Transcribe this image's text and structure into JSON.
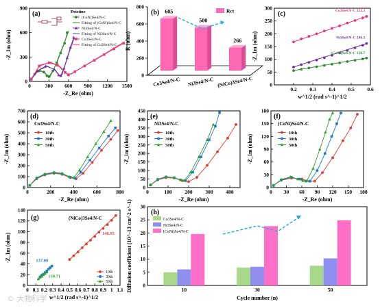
{
  "watermark": "© 大物科学",
  "chart_data": [
    {
      "panel": "(a)",
      "type": "line",
      "xlabel": "-Z_Re (ohm)",
      "ylabel": "-Z_Im (ohm)",
      "xlim": [
        0,
        1500
      ],
      "ylim": [
        0,
        900
      ],
      "xticks": [
        0,
        300,
        600,
        900,
        1200,
        1500
      ],
      "yticks": [
        0,
        300,
        600,
        900
      ],
      "legend_title": "Pristine",
      "series": [
        {
          "name": "(CoNi)Se4/N-C",
          "color": "#2e8b2e",
          "points": [
            [
              20,
              30
            ],
            [
              80,
              90
            ],
            [
              150,
              130
            ],
            [
              220,
              115
            ],
            [
              270,
              70
            ],
            [
              300,
              60
            ],
            [
              360,
              130
            ],
            [
              420,
              230
            ],
            [
              480,
              350
            ],
            [
              540,
              470
            ],
            [
              580,
              600
            ]
          ]
        },
        {
          "name": "Fitting of (CoNi)Se4/N-C",
          "color": "#2e8b2e",
          "points": [
            [
              20,
              20
            ],
            [
              100,
              110
            ],
            [
              180,
              130
            ],
            [
              240,
              105
            ],
            [
              280,
              60
            ],
            [
              310,
              50
            ],
            [
              380,
              160
            ],
            [
              460,
              320
            ],
            [
              540,
              480
            ],
            [
              600,
              620
            ]
          ]
        },
        {
          "name": "Ni3Se4/N-C",
          "color": "#7030a0",
          "points": [
            [
              20,
              25
            ],
            [
              120,
              130
            ],
            [
              250,
              190
            ],
            [
              380,
              150
            ],
            [
              450,
              80
            ],
            [
              480,
              70
            ],
            [
              530,
              160
            ],
            [
              580,
              290
            ],
            [
              630,
              420
            ],
            [
              680,
              540
            ]
          ]
        },
        {
          "name": "Fitting of Ni3Se4/N-C",
          "color": "#7030a0",
          "points": [
            [
              20,
              20
            ],
            [
              140,
              140
            ],
            [
              280,
              185
            ],
            [
              400,
              140
            ],
            [
              460,
              70
            ],
            [
              500,
              80
            ],
            [
              560,
              230
            ],
            [
              620,
              380
            ],
            [
              690,
              540
            ]
          ]
        },
        {
          "name": "Co3Se4/N-C",
          "color": "#e8367d",
          "points": [
            [
              30,
              30
            ],
            [
              150,
              190
            ],
            [
              300,
              230
            ],
            [
              430,
              200
            ],
            [
              550,
              110
            ],
            [
              600,
              80
            ],
            [
              700,
              120
            ],
            [
              850,
              190
            ],
            [
              1000,
              260
            ],
            [
              1150,
              330
            ],
            [
              1300,
              400
            ],
            [
              1450,
              470
            ]
          ]
        },
        {
          "name": "Fitting of Co3Se4/N-C",
          "color": "#e8367d",
          "points": [
            [
              20,
              20
            ],
            [
              160,
              200
            ],
            [
              320,
              235
            ],
            [
              460,
              190
            ],
            [
              570,
              95
            ],
            [
              640,
              90
            ],
            [
              800,
              170
            ],
            [
              1000,
              265
            ],
            [
              1200,
              360
            ],
            [
              1450,
              480
            ]
          ]
        }
      ],
      "inset": "equivalent circuit"
    },
    {
      "panel": "(b)",
      "type": "bar",
      "ylabel": "R (ohm)",
      "ylim": [
        0,
        800
      ],
      "yticks": [
        0,
        200,
        400,
        600,
        800
      ],
      "legend": "Rct",
      "color": "#ff69b4",
      "categories": [
        "Co3Se4/N-C",
        "Ni3Se4/N-C",
        "(NiCo)3Se4/N-C"
      ],
      "values": [
        605,
        500,
        266
      ]
    },
    {
      "panel": "(c)",
      "type": "scatter",
      "xlabel": "w^1/2 (rad s^-1)^1/2",
      "ylabel": "-Z_Im (ohm)",
      "xlim": [
        0.1,
        0.6
      ],
      "ylim": [
        0,
        300
      ],
      "xticks": [
        0.2,
        0.3,
        0.4,
        0.5,
        0.6
      ],
      "yticks": [
        0,
        50,
        100,
        150,
        200,
        250,
        300
      ],
      "series": [
        {
          "name": "Co3Se4/N-C",
          "slope_label": "253.3",
          "color": "#e8367d",
          "x": [
            0.2,
            0.24,
            0.28,
            0.32,
            0.36,
            0.4,
            0.44,
            0.48,
            0.52,
            0.56,
            0.58
          ],
          "y": [
            168,
            180,
            190,
            200,
            211,
            221,
            231,
            242,
            252,
            262,
            268
          ]
        },
        {
          "name": "Ni3Se4/N-C",
          "slope_label": "244.5",
          "color": "#7030a0",
          "x": [
            0.2,
            0.24,
            0.28,
            0.32,
            0.36,
            0.4,
            0.44,
            0.48,
            0.52,
            0.56,
            0.58
          ],
          "y": [
            70,
            79,
            88,
            97,
            106,
            116,
            125,
            135,
            145,
            155,
            162
          ]
        },
        {
          "name": "(CoNi)Se4/N-C",
          "slope_label": "120.7",
          "color": "#2e8b2e",
          "x": [
            0.2,
            0.24,
            0.28,
            0.32,
            0.36,
            0.4,
            0.44,
            0.48,
            0.52,
            0.56,
            0.58
          ],
          "y": [
            56,
            61,
            66,
            71,
            76,
            81,
            86,
            91,
            96,
            101,
            105
          ]
        }
      ]
    },
    {
      "panel": "(d)",
      "type": "line",
      "title": "Co3Se4/N-C",
      "xlabel": "-Z_Re (ohm)",
      "ylabel": "-Z_Im (ohm)",
      "xlim": [
        0,
        800
      ],
      "ylim": [
        0,
        700
      ],
      "xticks": [
        0,
        200,
        400,
        600,
        800
      ],
      "yticks": [
        0,
        100,
        200,
        300,
        400,
        500,
        600,
        700
      ],
      "series": [
        {
          "name": "10th",
          "color": "#e03c31",
          "points": [
            [
              20,
              20
            ],
            [
              80,
              80
            ],
            [
              150,
              115
            ],
            [
              230,
              130
            ],
            [
              300,
              120
            ],
            [
              370,
              90
            ],
            [
              420,
              80
            ],
            [
              480,
              130
            ],
            [
              560,
              230
            ],
            [
              640,
              340
            ],
            [
              720,
              440
            ],
            [
              780,
              520
            ]
          ]
        },
        {
          "name": "30th",
          "color": "#1f77d0",
          "points": [
            [
              20,
              20
            ],
            [
              80,
              85
            ],
            [
              150,
              120
            ],
            [
              230,
              135
            ],
            [
              300,
              125
            ],
            [
              370,
              95
            ],
            [
              410,
              85
            ],
            [
              460,
              140
            ],
            [
              540,
              250
            ],
            [
              620,
              360
            ],
            [
              700,
              470
            ],
            [
              760,
              545
            ]
          ]
        },
        {
          "name": "50th",
          "color": "#2ca02c",
          "points": [
            [
              20,
              20
            ],
            [
              80,
              90
            ],
            [
              150,
              125
            ],
            [
              230,
              140
            ],
            [
              300,
              130
            ],
            [
              360,
              100
            ],
            [
              400,
              90
            ],
            [
              450,
              160
            ],
            [
              520,
              280
            ],
            [
              590,
              400
            ],
            [
              660,
              510
            ],
            [
              720,
              610
            ]
          ]
        }
      ]
    },
    {
      "panel": "(e)",
      "type": "line",
      "title": "Ni3Se4/N-C",
      "xlabel": "-Z_Re (ohm)",
      "ylabel": "-Z_Im (ohm)",
      "xlim": [
        0,
        450
      ],
      "ylim": [
        0,
        450
      ],
      "xticks": [
        0,
        100,
        200,
        300,
        400
      ],
      "yticks": [
        0,
        50,
        100,
        150,
        200,
        250,
        300,
        350,
        400,
        450
      ],
      "series": [
        {
          "name": "10th",
          "color": "#e03c31",
          "points": [
            [
              15,
              15
            ],
            [
              50,
              45
            ],
            [
              90,
              58
            ],
            [
              130,
              55
            ],
            [
              170,
              40
            ],
            [
              200,
              35
            ],
            [
              240,
              60
            ],
            [
              290,
              130
            ],
            [
              340,
              210
            ],
            [
              390,
              290
            ],
            [
              430,
              370
            ]
          ]
        },
        {
          "name": "30th",
          "color": "#1f77d0",
          "points": [
            [
              15,
              15
            ],
            [
              50,
              48
            ],
            [
              90,
              62
            ],
            [
              130,
              58
            ],
            [
              160,
              45
            ],
            [
              185,
              40
            ],
            [
              220,
              90
            ],
            [
              260,
              180
            ],
            [
              300,
              280
            ],
            [
              330,
              360
            ],
            [
              350,
              440
            ]
          ]
        },
        {
          "name": "50th",
          "color": "#2ca02c",
          "points": [
            [
              15,
              15
            ],
            [
              50,
              50
            ],
            [
              90,
              64
            ],
            [
              130,
              58
            ],
            [
              160,
              45
            ],
            [
              180,
              42
            ],
            [
              210,
              90
            ],
            [
              250,
              180
            ],
            [
              290,
              280
            ],
            [
              320,
              370
            ]
          ]
        }
      ]
    },
    {
      "panel": "(f)",
      "type": "line",
      "title": "(CoNi)Se4/N-C",
      "xlabel": "-Z_Re (ohm)",
      "ylabel": "-Z_Im (ohm)",
      "xlim": [
        0,
        180
      ],
      "ylim": [
        0,
        180
      ],
      "xticks": [
        0,
        30,
        60,
        90,
        120,
        150,
        180
      ],
      "yticks": [
        0,
        30,
        60,
        90,
        120,
        150,
        180
      ],
      "series": [
        {
          "name": "10th",
          "color": "#e03c31",
          "points": [
            [
              5,
              5
            ],
            [
              20,
              17
            ],
            [
              40,
              22
            ],
            [
              60,
              20
            ],
            [
              75,
              15
            ],
            [
              85,
              15
            ],
            [
              100,
              35
            ],
            [
              120,
              70
            ],
            [
              140,
              110
            ],
            [
              155,
              140
            ],
            [
              168,
              172
            ]
          ]
        },
        {
          "name": "30th",
          "color": "#1f77d0",
          "points": [
            [
              5,
              5
            ],
            [
              20,
              18
            ],
            [
              40,
              24
            ],
            [
              55,
              20
            ],
            [
              68,
              15
            ],
            [
              76,
              15
            ],
            [
              90,
              40
            ],
            [
              105,
              80
            ],
            [
              118,
              120
            ],
            [
              128,
              150
            ],
            [
              136,
              175
            ]
          ]
        },
        {
          "name": "50th",
          "color": "#2ca02c",
          "points": [
            [
              5,
              5
            ],
            [
              20,
              19
            ],
            [
              38,
              25
            ],
            [
              52,
              20
            ],
            [
              62,
              16
            ],
            [
              70,
              16
            ],
            [
              82,
              45
            ],
            [
              95,
              90
            ],
            [
              106,
              130
            ],
            [
              114,
              160
            ],
            [
              120,
              175
            ]
          ]
        }
      ]
    },
    {
      "panel": "(g)",
      "type": "scatter",
      "title": "(NiCo)3Se4/N-C",
      "xlabel": "w^1/2 (rad s^-1)^1/2",
      "ylabel": "-Z_Im (ohm)",
      "xlim": [
        0.0,
        1.1
      ],
      "ylim": [
        0,
        140
      ],
      "xticks": [
        0.0,
        0.1,
        0.2,
        0.3,
        0.4,
        0.5,
        0.6,
        0.7,
        0.8,
        0.9,
        1.0,
        1.1
      ],
      "yticks": [
        0,
        20,
        40,
        60,
        80,
        100,
        120,
        140
      ],
      "series": [
        {
          "name": "10th",
          "slope_label": "146.95",
          "color": "#e03c31",
          "x": [
            0.5,
            0.55,
            0.6,
            0.65,
            0.7,
            0.75,
            0.8,
            0.85,
            0.9,
            0.95,
            1.0,
            1.05
          ],
          "y": [
            48,
            55,
            62,
            70,
            77,
            84,
            91,
            99,
            106,
            113,
            121,
            130
          ]
        },
        {
          "name": "30th",
          "slope_label": "137.08",
          "color": "#1f77d0",
          "x": [
            0.15,
            0.17,
            0.19,
            0.21,
            0.23,
            0.25,
            0.27,
            0.29
          ],
          "y": [
            16,
            19,
            21,
            24,
            27,
            30,
            33,
            36
          ]
        },
        {
          "name": "50th",
          "slope_label": "130.71",
          "color": "#2ca02c",
          "x": [
            0.13,
            0.15,
            0.17,
            0.19,
            0.21,
            0.23
          ],
          "y": [
            12,
            15,
            17,
            20,
            22,
            25
          ]
        }
      ]
    },
    {
      "panel": "(h)",
      "type": "bar",
      "xlabel": "Cycle number (n)",
      "ylabel": "Diffusion coefficient (10^-13 cm^2 s^-1)",
      "ylim": [
        0,
        30
      ],
      "yticks": [
        0,
        5,
        10,
        15,
        20,
        25,
        30
      ],
      "categories": [
        "10",
        "30",
        "50"
      ],
      "series": [
        {
          "name": "Co3Se4/N-C",
          "color": "#a8d98a",
          "values": [
            5.0,
            6.8,
            7.5
          ]
        },
        {
          "name": "Ni3Se4/N-C",
          "color": "#8f8ff0",
          "values": [
            6.1,
            7.1,
            10.3
          ]
        },
        {
          "name": "(CoNi)Se4/N-C",
          "color": "#ff6fc8",
          "values": [
            19.6,
            22.6,
            24.8
          ]
        }
      ]
    }
  ]
}
